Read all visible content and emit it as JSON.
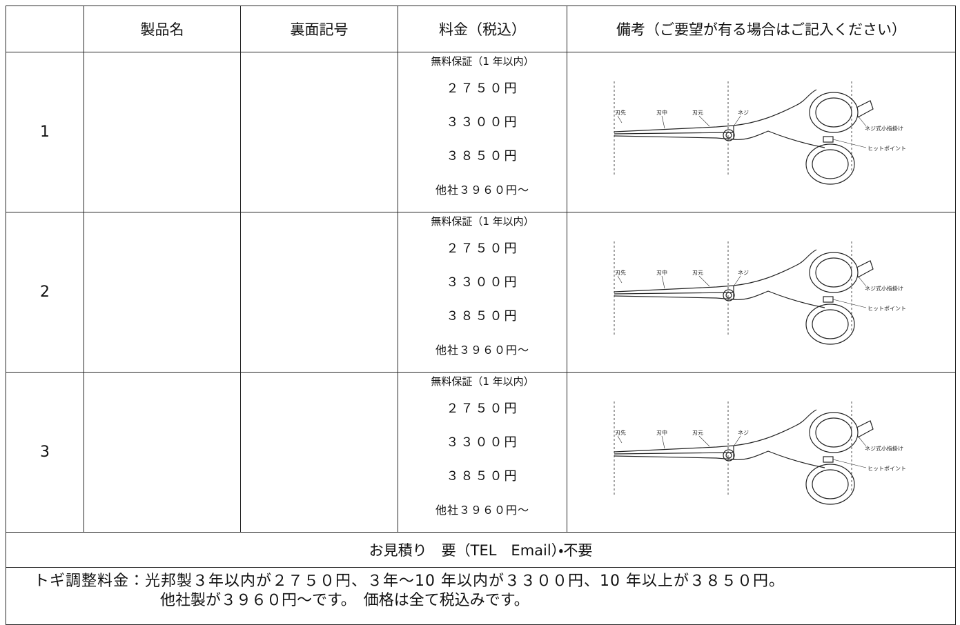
{
  "table": {
    "header": [
      "製品名",
      "裏面記号",
      "料金（税込）",
      "備考（ご要望が有る場合はご記入ください）"
    ],
    "rows": [
      {
        "number": "1",
        "price_lines": [
          "無料保証（1 年以内）",
          "２７５０円",
          "３３００円",
          "３８５０円",
          "他社３９６０円〜"
        ]
      },
      {
        "number": "2",
        "price_lines": [
          "無料保証（1 年以内）",
          "２７５０円",
          "３３００円",
          "３８５０円",
          "他社３９６０円〜"
        ]
      },
      {
        "number": "3",
        "price_lines": [
          "無料保証（1 年以内）",
          "２７５０円",
          "３３００円",
          "３８５０円",
          "他社３９６０円〜"
        ]
      }
    ],
    "estimate": "お見積り　要（TEL　Email）・不要",
    "footer": [
      "トギ調整料金：光邦製３年以内が２７５０円、３年〜10 年以内が３３００円、10 年以上が３８５０円。",
      "他社製が３９６０円〜です。　価格は全て税込みです。"
    ]
  },
  "diagram": {
    "labels": [
      "刃先",
      "刃中",
      "刃元",
      "ネジ",
      "ネジ式小指掛け",
      "ヒットポイント"
    ]
  }
}
